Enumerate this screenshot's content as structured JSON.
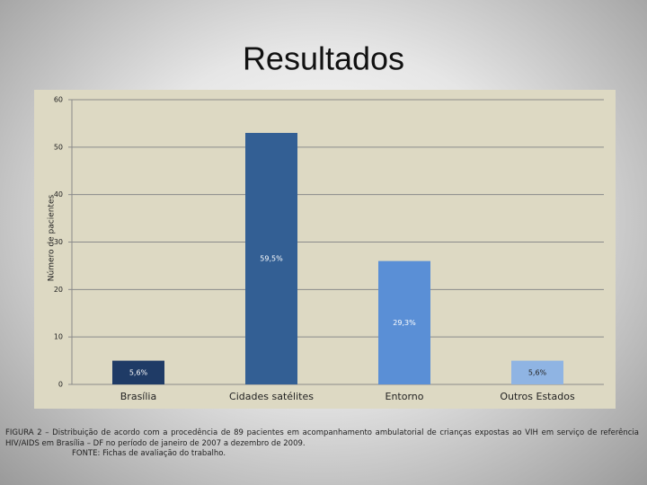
{
  "chart_data": {
    "type": "bar",
    "title": "Resultados",
    "y_label": "Número de pacientes",
    "categories": [
      "Brasília",
      "Cidades satélites",
      "Entorno",
      "Outros Estados"
    ],
    "values": [
      5,
      53,
      26,
      5
    ],
    "colors": [
      "#1f3b66",
      "#335f94",
      "#5a8fd6",
      "#8fb4e3"
    ],
    "percent_labels": [
      "5,6%",
      "59,5%",
      "29,3%",
      "5,6%"
    ],
    "ylim": [
      0,
      60
    ],
    "yticks": [
      0,
      10,
      20,
      30,
      40,
      50,
      60
    ],
    "grid": true,
    "caption": "FIGURA 2 – Distribuição de acordo com a procedência de 89 pacientes em acompanhamento ambulatorial de crianças expostas ao VIH em serviço de referência HIV/AIDS em Brasília – DF no período de janeiro de 2007 a dezembro de 2009.",
    "source": "FONTE: Fichas de avaliação do trabalho."
  }
}
